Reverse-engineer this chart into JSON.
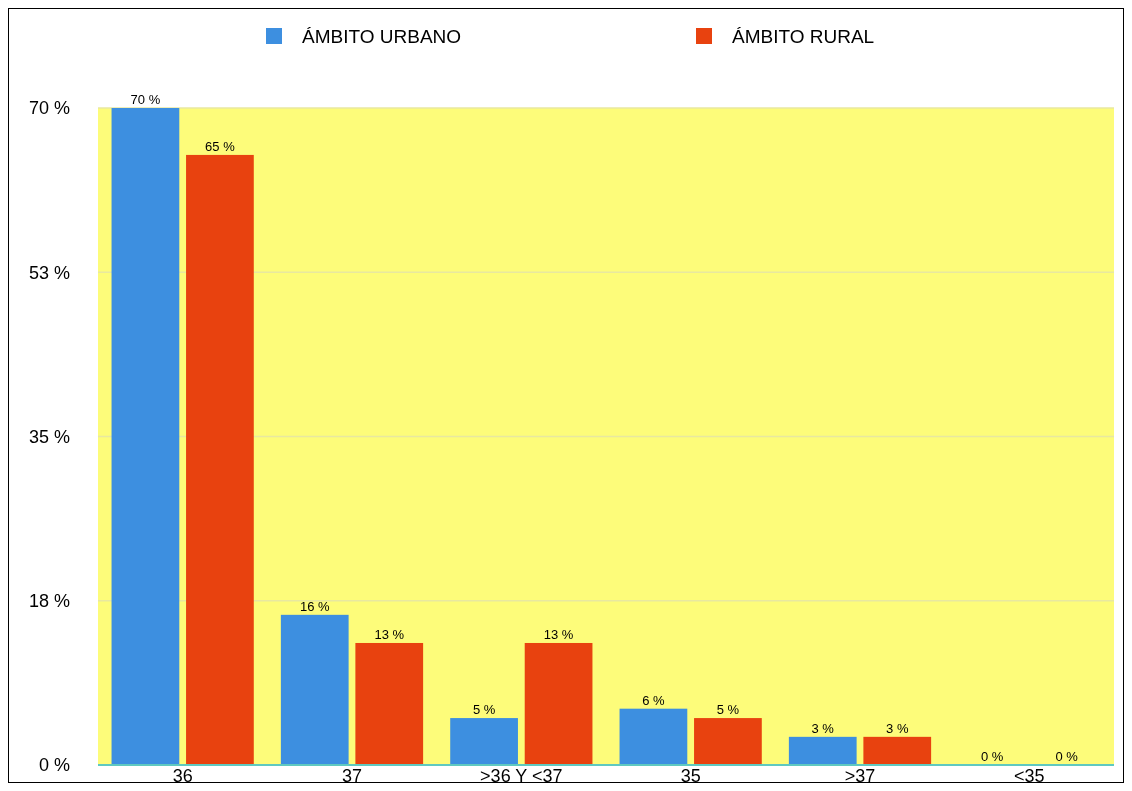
{
  "chart_data": {
    "type": "bar",
    "categories": [
      "36",
      "37",
      ">36 Y <37",
      "35",
      ">37",
      "<35"
    ],
    "series": [
      {
        "name": "ÁMBITO URBANO",
        "color": "#3d8fe0",
        "values": [
          70,
          16,
          5,
          6,
          3,
          0
        ],
        "value_labels": [
          "70 %",
          "16 %",
          "5 %",
          "6 %",
          "3 %",
          "0 %"
        ]
      },
      {
        "name": "ÁMBITO RURAL",
        "color": "#e8420f",
        "values": [
          65,
          13,
          13,
          5,
          3,
          0
        ],
        "value_labels": [
          "65 %",
          "13 %",
          "13 %",
          "5 %",
          "3 %",
          "0 %"
        ]
      }
    ],
    "ylim": [
      0,
      70
    ],
    "yticks": [
      {
        "value": 0,
        "label": "0 %"
      },
      {
        "value": 17.5,
        "label": "18 %"
      },
      {
        "value": 35,
        "label": "35 %"
      },
      {
        "value": 52.5,
        "label": "53 %"
      },
      {
        "value": 70,
        "label": "70 %"
      }
    ],
    "grid": "y",
    "legend": "top"
  }
}
